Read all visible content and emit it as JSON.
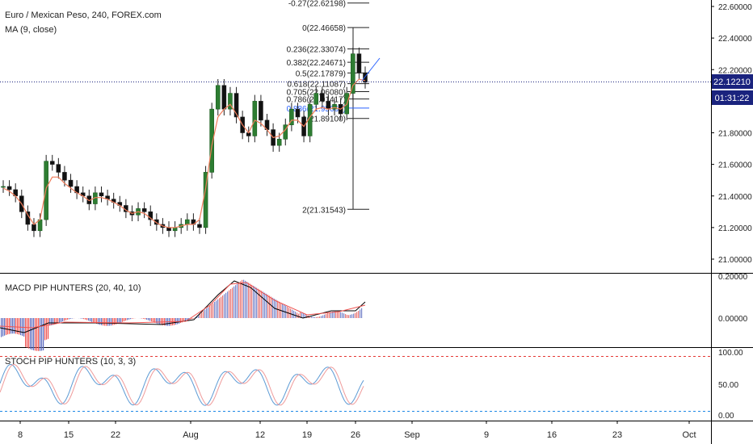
{
  "header": {
    "symbol_title": "Euro / Mexican Peso, 240, FOREX.com",
    "ma_label": "MA (9, close)"
  },
  "price_axis": {
    "ticks": [
      "22.60000",
      "22.40000",
      "22.20000",
      "22.00000",
      "21.80000",
      "21.60000",
      "21.40000",
      "21.20000",
      "21.00000"
    ],
    "tick_values": [
      22.6,
      22.4,
      22.2,
      22.0,
      21.8,
      21.6,
      21.4,
      21.2,
      21.0
    ],
    "current_price": "22.12210",
    "countdown": "01:31:22"
  },
  "macd": {
    "label": "MACD PIP HUNTERS (20, 40, 10)",
    "ticks": [
      "0.20000",
      "0.00000"
    ]
  },
  "stoch": {
    "label": "STOCH PIP HUNTERS (10, 3, 3)",
    "ticks": [
      "100.00",
      "50.00",
      "0.00"
    ]
  },
  "time_axis": {
    "labels": [
      "8",
      "15",
      "22",
      "Aug",
      "5",
      "12",
      "19",
      "26",
      "Sep",
      "9",
      "16",
      "23",
      "Oct"
    ]
  },
  "fib_levels": [
    {
      "label": "-0.27(22.62198)",
      "price": 22.62198
    },
    {
      "label": "0(22.46658)",
      "price": 22.46658
    },
    {
      "label": "0.236(22.33074)",
      "price": 22.33074
    },
    {
      "label": "0.382(22.24671)",
      "price": 22.24671
    },
    {
      "label": "0.5(22.17879)",
      "price": 22.17879
    },
    {
      "label": "0.618(22.11087)",
      "price": 22.11087
    },
    {
      "label": "0.705(22.06080)",
      "price": 22.0608
    },
    {
      "label": "0.786(22.01417)",
      "price": 22.01417
    },
    {
      "label": "0.886(21.95660)",
      "price": 21.9566
    },
    {
      "label": "1(21.89100)",
      "price": 21.891
    },
    {
      "label": "2(21.31543)",
      "price": 21.31543
    }
  ],
  "chart_data": {
    "type": "candlestick",
    "title": "Euro / Mexican Peso, 240, FOREX.com",
    "x_range_labels": [
      "8",
      "15",
      "22",
      "Aug",
      "5",
      "12",
      "19",
      "26"
    ],
    "ylim": [
      20.95,
      22.68
    ],
    "close_series": [
      21.46,
      21.44,
      21.4,
      21.3,
      21.22,
      21.18,
      21.25,
      21.62,
      21.6,
      21.55,
      21.5,
      21.46,
      21.42,
      21.4,
      21.35,
      21.42,
      21.4,
      21.38,
      21.36,
      21.34,
      21.3,
      21.28,
      21.32,
      21.3,
      21.25,
      21.22,
      21.2,
      21.18,
      21.2,
      21.22,
      21.25,
      21.22,
      21.2,
      21.55,
      21.95,
      22.1,
      21.95,
      22.05,
      21.9,
      21.8,
      21.78,
      22.0,
      21.88,
      21.82,
      21.72,
      21.76,
      21.85,
      21.95,
      21.9,
      21.78,
      21.98,
      22.05,
      22.0,
      21.95,
      21.98,
      21.92,
      22.05,
      22.3,
      22.18,
      22.12
    ],
    "ma_series": [
      21.45,
      21.43,
      21.4,
      21.35,
      21.28,
      21.22,
      21.25,
      21.45,
      21.52,
      21.52,
      21.48,
      21.45,
      21.42,
      21.4,
      21.37,
      21.39,
      21.39,
      21.38,
      21.36,
      21.34,
      21.31,
      21.29,
      21.3,
      21.29,
      21.26,
      21.23,
      21.21,
      21.2,
      21.2,
      21.21,
      21.22,
      21.22,
      21.25,
      21.45,
      21.72,
      21.9,
      21.95,
      21.98,
      21.92,
      21.85,
      21.8,
      21.88,
      21.86,
      21.82,
      21.77,
      21.78,
      21.82,
      21.88,
      21.88,
      21.84,
      21.9,
      21.95,
      21.96,
      21.95,
      21.96,
      21.95,
      21.98,
      22.1,
      22.14,
      22.13
    ]
  }
}
